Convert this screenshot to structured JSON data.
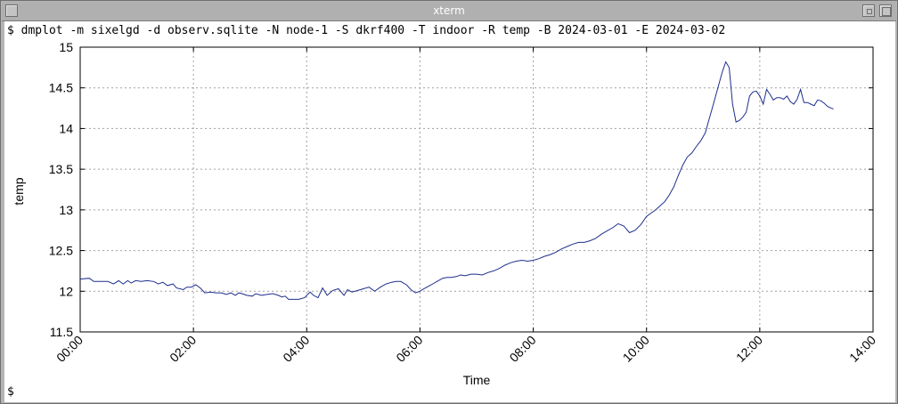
{
  "window": {
    "title": "xterm",
    "colors": {
      "frame": "#b4b4b4",
      "title_text": "#ffffff",
      "terminal_bg": "#ffffff"
    }
  },
  "terminal": {
    "command": "$ dmplot -m sixelgd -d observ.sqlite -N node-1 -S dkrf400 -T indoor -R temp -B 2024-03-01 -E 2024-03-02",
    "prompt": "$"
  },
  "chart_data": {
    "type": "line",
    "xlabel": "Time",
    "ylabel": "temp",
    "xlim": [
      0,
      14
    ],
    "ylim": [
      11.5,
      15
    ],
    "x_ticks": [
      0,
      2,
      4,
      6,
      8,
      10,
      12,
      14
    ],
    "x_tick_labels": [
      "00:00",
      "02:00",
      "04:00",
      "06:00",
      "08:00",
      "10:00",
      "12:00",
      "14:00"
    ],
    "y_ticks": [
      11.5,
      12,
      12.5,
      13,
      13.5,
      14,
      14.5,
      15
    ],
    "y_tick_labels": [
      "11.5",
      "12",
      "12.5",
      "13",
      "13.5",
      "14",
      "14.5",
      "15"
    ],
    "grid": true,
    "line_color": "#1e2f8c",
    "series": [
      {
        "x": [
          0.0,
          0.16,
          0.24,
          0.33,
          0.49,
          0.59,
          0.68,
          0.76,
          0.84,
          0.9,
          0.98,
          1.08,
          1.18,
          1.3,
          1.38,
          1.46,
          1.54,
          1.64,
          1.7,
          1.76,
          1.82,
          1.88,
          1.96,
          2.04,
          2.12,
          2.2,
          2.3,
          2.4,
          2.5,
          2.58,
          2.66,
          2.74,
          2.8,
          2.86,
          2.94,
          3.04,
          3.1,
          3.2,
          3.3,
          3.4,
          3.5,
          3.56,
          3.62,
          3.68,
          3.76,
          3.86,
          3.96,
          4.06,
          4.12,
          4.2,
          4.28,
          4.36,
          4.46,
          4.56,
          4.66,
          4.72,
          4.8,
          4.9,
          5.0,
          5.1,
          5.2,
          5.3,
          5.4,
          5.5,
          5.58,
          5.66,
          5.76,
          5.84,
          5.92,
          6.0,
          6.04,
          6.12,
          6.2,
          6.3,
          6.4,
          6.48,
          6.56,
          6.64,
          6.72,
          6.8,
          6.9,
          7.0,
          7.1,
          7.2,
          7.3,
          7.4,
          7.5,
          7.6,
          7.7,
          7.8,
          7.9,
          8.0,
          8.1,
          8.2,
          8.3,
          8.4,
          8.5,
          8.6,
          8.7,
          8.8,
          8.9,
          9.0,
          9.1,
          9.2,
          9.3,
          9.4,
          9.5,
          9.6,
          9.7,
          9.8,
          9.9,
          10.0,
          10.08,
          10.16,
          10.24,
          10.32,
          10.4,
          10.48,
          10.56,
          10.64,
          10.72,
          10.8,
          10.88,
          10.96,
          11.04,
          11.1,
          11.16,
          11.22,
          11.28,
          11.34,
          11.4,
          11.46,
          11.52,
          11.58,
          11.64,
          11.7,
          11.76,
          11.82,
          11.88,
          11.94,
          12.0,
          12.06,
          12.12,
          12.18,
          12.24,
          12.3,
          12.36,
          12.42,
          12.48,
          12.54,
          12.6,
          12.66,
          12.72,
          12.78,
          12.84,
          12.9,
          12.96,
          13.02,
          13.08,
          13.14,
          13.2,
          13.26,
          13.3
        ],
        "values": [
          12.15,
          12.16,
          12.12,
          12.12,
          12.12,
          12.09,
          12.13,
          12.09,
          12.13,
          12.1,
          12.13,
          12.12,
          12.13,
          12.12,
          12.09,
          12.11,
          12.07,
          12.09,
          12.04,
          12.03,
          12.02,
          12.05,
          12.05,
          12.08,
          12.04,
          11.98,
          11.99,
          11.98,
          11.98,
          11.96,
          11.98,
          11.95,
          11.98,
          11.97,
          11.95,
          11.94,
          11.97,
          11.95,
          11.96,
          11.97,
          11.95,
          11.93,
          11.94,
          11.9,
          11.9,
          11.9,
          11.92,
          11.99,
          11.95,
          11.92,
          12.04,
          11.95,
          12.01,
          12.03,
          11.95,
          12.02,
          11.99,
          12.01,
          12.03,
          12.05,
          12.0,
          12.05,
          12.09,
          12.11,
          12.12,
          12.12,
          12.08,
          12.02,
          11.98,
          12.0,
          12.02,
          12.05,
          12.08,
          12.12,
          12.16,
          12.17,
          12.17,
          12.18,
          12.2,
          12.19,
          12.21,
          12.21,
          12.2,
          12.23,
          12.25,
          12.28,
          12.32,
          12.35,
          12.37,
          12.38,
          12.37,
          12.38,
          12.4,
          12.43,
          12.45,
          12.48,
          12.52,
          12.55,
          12.58,
          12.6,
          12.6,
          12.62,
          12.65,
          12.7,
          12.74,
          12.78,
          12.83,
          12.8,
          12.72,
          12.75,
          12.82,
          12.92,
          12.96,
          13.0,
          13.05,
          13.1,
          13.18,
          13.28,
          13.42,
          13.55,
          13.65,
          13.7,
          13.78,
          13.85,
          13.95,
          14.1,
          14.25,
          14.4,
          14.55,
          14.7,
          14.82,
          14.75,
          14.3,
          14.08,
          14.1,
          14.14,
          14.2,
          14.4,
          14.45,
          14.46,
          14.4,
          14.3,
          14.48,
          14.42,
          14.35,
          14.38,
          14.38,
          14.36,
          14.4,
          14.33,
          14.3,
          14.36,
          14.48,
          14.32,
          14.32,
          14.3,
          14.28,
          14.35,
          14.34,
          14.31,
          14.27,
          14.25,
          14.24
        ]
      }
    ]
  }
}
